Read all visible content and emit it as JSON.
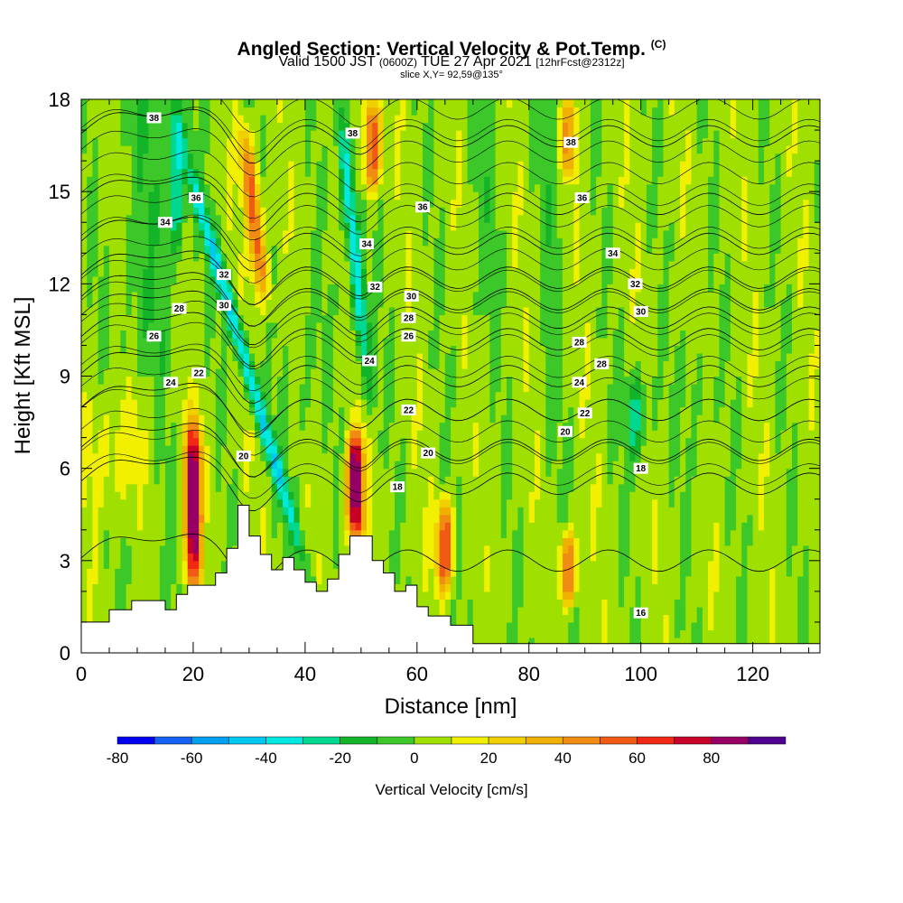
{
  "title": {
    "main": "Angled Section: Vertical Velocity & Pot.Temp.",
    "unit_tag": "(C)",
    "valid_prefix": "Valid 1500 JST",
    "valid_zulu": "(0600Z)",
    "valid_date": "TUE 27 Apr 2021",
    "forecast": "[12hrFcst@2312z]",
    "slice": "slice X,Y= 92,59@135°"
  },
  "chart_data": {
    "type": "heatmap",
    "xlabel": "Distance [nm]",
    "ylabel": "Height [Kft MSL]",
    "xlim": [
      0,
      132
    ],
    "ylim": [
      0,
      18
    ],
    "x_ticks": [
      "0",
      "20",
      "40",
      "60",
      "80",
      "100",
      "120"
    ],
    "x_tick_values": [
      0,
      20,
      40,
      60,
      80,
      100,
      120
    ],
    "y_ticks": [
      "0",
      "3",
      "6",
      "9",
      "12",
      "15",
      "18"
    ],
    "y_tick_values": [
      0,
      3,
      6,
      9,
      12,
      15,
      18
    ],
    "colorbar": {
      "title": "Vertical Velocity [cm/s]",
      "tick_labels": [
        "-80",
        "-60",
        "-40",
        "-20",
        "0",
        "20",
        "40",
        "60",
        "80"
      ],
      "tick_values": [
        -80,
        -60,
        -40,
        -20,
        0,
        20,
        40,
        60,
        80
      ],
      "bins": [
        -80,
        -70,
        -60,
        -50,
        -40,
        -30,
        -20,
        -10,
        0,
        10,
        20,
        30,
        40,
        50,
        60,
        70,
        80,
        90
      ],
      "colors": [
        "#0000f0",
        "#1460f0",
        "#00a0f0",
        "#00c8f0",
        "#00e8e0",
        "#00d890",
        "#14b428",
        "#3cc828",
        "#a0e000",
        "#f0f000",
        "#f0d000",
        "#f0b000",
        "#f08c14",
        "#f05a14",
        "#f02814",
        "#c80028",
        "#960064",
        "#500090"
      ]
    },
    "terrain_profile": {
      "x": [
        0,
        5,
        5,
        9,
        9,
        15,
        15,
        17,
        17,
        19,
        19,
        24,
        24,
        26,
        26,
        28,
        28,
        30,
        30,
        32,
        32,
        34,
        34,
        36,
        36,
        38,
        38,
        40,
        40,
        42,
        42,
        44,
        44,
        46,
        46,
        48,
        48,
        52,
        52,
        54,
        54,
        56,
        56,
        58,
        58,
        60,
        60,
        62,
        62,
        66,
        66,
        70,
        70,
        132
      ],
      "y": [
        1.0,
        1.0,
        1.4,
        1.4,
        1.7,
        1.7,
        1.4,
        1.4,
        1.9,
        1.9,
        2.2,
        2.2,
        2.6,
        2.6,
        3.4,
        3.4,
        4.8,
        4.8,
        3.8,
        3.8,
        3.2,
        3.2,
        2.7,
        2.7,
        3.1,
        3.1,
        2.7,
        2.7,
        2.3,
        2.3,
        2.0,
        2.0,
        2.4,
        2.4,
        3.2,
        3.2,
        3.8,
        3.8,
        3.0,
        3.0,
        2.6,
        2.6,
        2.0,
        2.0,
        2.2,
        2.2,
        1.5,
        1.5,
        1.2,
        1.2,
        0.9,
        0.9,
        0.3,
        0.3
      ]
    },
    "updraft_features": [
      {
        "x": 20,
        "ybot": 2.2,
        "ytop": 7.6,
        "peak": 90
      },
      {
        "x": 49,
        "ybot": 3.7,
        "ytop": 7.2,
        "peak": 90
      },
      {
        "x": 65,
        "ybot": 2.0,
        "ytop": 5.0,
        "peak": 55
      },
      {
        "x": 87,
        "ybot": 1.5,
        "ytop": 4.0,
        "peak": 50
      },
      {
        "x": 31,
        "ybot": 11.5,
        "ytop": 17.0,
        "peak": 55
      },
      {
        "x": 52,
        "ybot": 15.0,
        "ytop": 18.0,
        "peak": 60
      },
      {
        "x": 87,
        "ybot": 15.5,
        "ytop": 18.0,
        "peak": 35
      }
    ],
    "downdraft_features": [
      {
        "x": 28.5,
        "ybot": 3.0,
        "ytop": 16.5,
        "peak": -45
      },
      {
        "x": 50.5,
        "ybot": 8.5,
        "ytop": 18.0,
        "peak": -45
      },
      {
        "x": 17,
        "ybot": 13.0,
        "ytop": 18.0,
        "peak": -30
      },
      {
        "x": 99,
        "ybot": 6.2,
        "ytop": 9.0,
        "peak": -22
      }
    ],
    "contour_labels": [
      {
        "text": "38",
        "x": 13,
        "y": 17.4
      },
      {
        "text": "38",
        "x": 48.5,
        "y": 16.9
      },
      {
        "text": "38",
        "x": 87.5,
        "y": 16.6
      },
      {
        "text": "36",
        "x": 20.5,
        "y": 14.8
      },
      {
        "text": "36",
        "x": 61,
        "y": 14.5
      },
      {
        "text": "36",
        "x": 89.5,
        "y": 14.8
      },
      {
        "text": "34",
        "x": 15,
        "y": 14.0
      },
      {
        "text": "34",
        "x": 51,
        "y": 13.3
      },
      {
        "text": "34",
        "x": 95,
        "y": 13.0
      },
      {
        "text": "32",
        "x": 25.5,
        "y": 12.3
      },
      {
        "text": "32",
        "x": 52.5,
        "y": 11.9
      },
      {
        "text": "32",
        "x": 99,
        "y": 12.0
      },
      {
        "text": "30",
        "x": 25.5,
        "y": 11.3
      },
      {
        "text": "30",
        "x": 59,
        "y": 11.6
      },
      {
        "text": "30",
        "x": 100,
        "y": 11.1
      },
      {
        "text": "28",
        "x": 17.5,
        "y": 11.2
      },
      {
        "text": "28",
        "x": 58.5,
        "y": 10.9
      },
      {
        "text": "28",
        "x": 89,
        "y": 10.1
      },
      {
        "text": "28",
        "x": 93,
        "y": 9.4
      },
      {
        "text": "26",
        "x": 13,
        "y": 10.3
      },
      {
        "text": "26",
        "x": 58.5,
        "y": 10.3
      },
      {
        "text": "24",
        "x": 16,
        "y": 8.8
      },
      {
        "text": "24",
        "x": 51.5,
        "y": 9.5
      },
      {
        "text": "24",
        "x": 89,
        "y": 8.8
      },
      {
        "text": "22",
        "x": 21,
        "y": 9.1
      },
      {
        "text": "22",
        "x": 58.5,
        "y": 7.9
      },
      {
        "text": "22",
        "x": 90,
        "y": 7.8
      },
      {
        "text": "20",
        "x": 29,
        "y": 6.4
      },
      {
        "text": "20",
        "x": 62,
        "y": 6.5
      },
      {
        "text": "20",
        "x": 86.5,
        "y": 7.2
      },
      {
        "text": "18",
        "x": 56.5,
        "y": 5.4
      },
      {
        "text": "18",
        "x": 100,
        "y": 6.0
      },
      {
        "text": "16",
        "x": 100,
        "y": 1.3
      }
    ]
  }
}
